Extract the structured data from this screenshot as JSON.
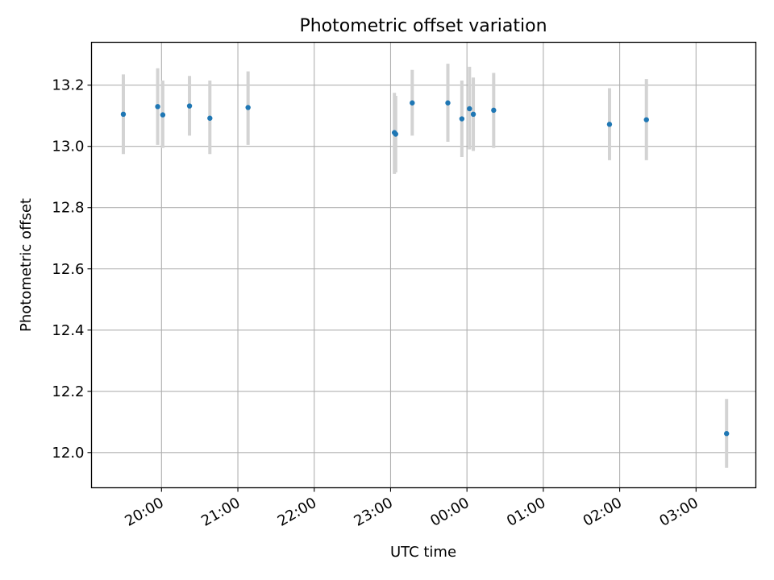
{
  "chart_data": {
    "type": "scatter",
    "title": "Photometric offset variation",
    "xlabel": "UTC time",
    "ylabel": "Photometric offset",
    "x_tick_labels": [
      "20:00",
      "21:00",
      "22:00",
      "23:00",
      "00:00",
      "01:00",
      "02:00",
      "03:00"
    ],
    "y_tick_labels": [
      "12.0",
      "12.2",
      "12.4",
      "12.6",
      "12.8",
      "13.0",
      "13.2"
    ],
    "xlim": [
      "19:05",
      "03:47"
    ],
    "ylim": [
      11.885,
      13.34
    ],
    "grid": true,
    "marker_color": "#1f77b4",
    "errorbar_color": "#d3d3d3",
    "points": [
      {
        "x": "19:30",
        "y": 13.105,
        "yerr_low": 12.975,
        "yerr_high": 13.235
      },
      {
        "x": "19:57",
        "y": 13.13,
        "yerr_low": 13.005,
        "yerr_high": 13.255
      },
      {
        "x": "20:01",
        "y": 13.103,
        "yerr_low": 12.995,
        "yerr_high": 13.215
      },
      {
        "x": "20:22",
        "y": 13.132,
        "yerr_low": 13.035,
        "yerr_high": 13.23
      },
      {
        "x": "20:38",
        "y": 13.092,
        "yerr_low": 12.975,
        "yerr_high": 13.215
      },
      {
        "x": "21:08",
        "y": 13.127,
        "yerr_low": 13.005,
        "yerr_high": 13.245
      },
      {
        "x": "23:03",
        "y": 13.045,
        "yerr_low": 12.91,
        "yerr_high": 13.175
      },
      {
        "x": "23:04",
        "y": 13.04,
        "yerr_low": 12.915,
        "yerr_high": 13.165
      },
      {
        "x": "23:17",
        "y": 13.142,
        "yerr_low": 13.035,
        "yerr_high": 13.25
      },
      {
        "x": "23:45",
        "y": 13.142,
        "yerr_low": 13.015,
        "yerr_high": 13.27
      },
      {
        "x": "23:56",
        "y": 13.09,
        "yerr_low": 12.965,
        "yerr_high": 13.215
      },
      {
        "x": "00:02",
        "y": 13.123,
        "yerr_low": 12.99,
        "yerr_high": 13.26
      },
      {
        "x": "00:05",
        "y": 13.105,
        "yerr_low": 12.985,
        "yerr_high": 13.225
      },
      {
        "x": "00:21",
        "y": 13.118,
        "yerr_low": 12.995,
        "yerr_high": 13.24
      },
      {
        "x": "01:52",
        "y": 13.072,
        "yerr_low": 12.955,
        "yerr_high": 13.19
      },
      {
        "x": "02:21",
        "y": 13.087,
        "yerr_low": 12.955,
        "yerr_high": 13.22
      },
      {
        "x": "03:24",
        "y": 12.062,
        "yerr_low": 11.95,
        "yerr_high": 12.175
      }
    ]
  }
}
